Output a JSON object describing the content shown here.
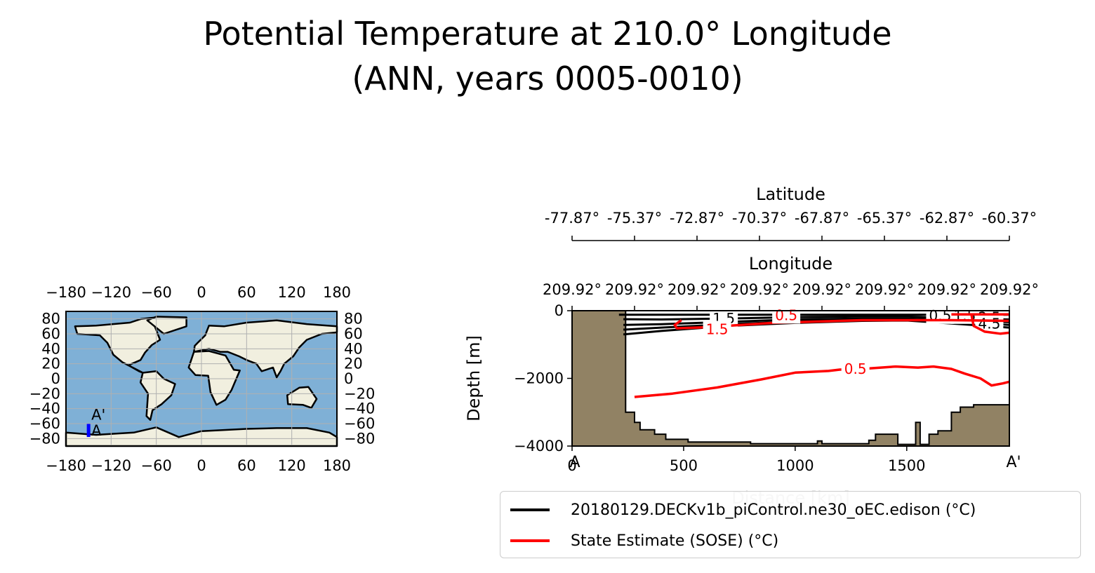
{
  "title": {
    "line1": "Potential Temperature at 210.0° Longitude",
    "line2": "(ANN, years 0005-0010)"
  },
  "colors": {
    "model": "#000000",
    "obs": "#ff0000",
    "land_section": "#918264",
    "map_ocean": "#7fb0d6",
    "map_land": "#f1efdf",
    "section_marker": "#0000ff"
  },
  "chart_data": [
    {
      "type": "map",
      "projection": "PlateCarree",
      "grid": true,
      "xlim": [
        -180,
        180
      ],
      "ylim": [
        -90,
        90
      ],
      "xticks": [
        "−180",
        "−120",
        "−60",
        "0",
        "60",
        "120",
        "180"
      ],
      "xtick_values": [
        -180,
        -120,
        -60,
        0,
        60,
        120,
        180
      ],
      "yticks": [
        "80",
        "60",
        "40",
        "20",
        "0",
        "−20",
        "−40",
        "−60",
        "−80"
      ],
      "ytick_values": [
        80,
        60,
        40,
        20,
        0,
        -20,
        -40,
        -60,
        -80
      ],
      "section": {
        "lon": -150.0,
        "lat_start": -77.87,
        "lat_end": -60.37,
        "start_label": "A",
        "end_label": "A'"
      }
    },
    {
      "type": "line",
      "subtype": "contour-section",
      "xlabel": "Distance [km]",
      "ylabel": "Depth [m]",
      "xlim": [
        0,
        1960
      ],
      "ylim": [
        -4000,
        0
      ],
      "xticks": [
        0,
        500,
        1000,
        1500
      ],
      "yticks": [
        0,
        -2000,
        -4000
      ],
      "ytick_labels": [
        "0",
        "−2000",
        "−4000"
      ],
      "start_label": "A",
      "end_label": "A'",
      "top_axis_longitude": {
        "label": "Longitude",
        "ticks": [
          "209.92°",
          "209.92°",
          "209.92°",
          "209.92°",
          "209.92°",
          "209.92°",
          "209.92°",
          "209.92°"
        ]
      },
      "top_axis_latitude": {
        "label": "Latitude",
        "ticks": [
          "-77.87°",
          "-75.37°",
          "-72.87°",
          "-70.37°",
          "-67.87°",
          "-65.37°",
          "-62.87°",
          "-60.37°"
        ]
      },
      "bathymetry": {
        "x": [
          0,
          240,
          240,
          280,
          280,
          305,
          305,
          370,
          370,
          420,
          420,
          520,
          520,
          800,
          800,
          1100,
          1100,
          1120,
          1120,
          1330,
          1330,
          1360,
          1360,
          1460,
          1460,
          1540,
          1540,
          1560,
          1560,
          1600,
          1600,
          1640,
          1640,
          1700,
          1700,
          1740,
          1740,
          1800,
          1800,
          1960,
          1960
        ],
        "depth": [
          0,
          0,
          -3000,
          -3000,
          -3300,
          -3300,
          -3520,
          -3520,
          -3650,
          -3650,
          -3800,
          -3800,
          -3880,
          -3880,
          -3930,
          -3930,
          -3850,
          -3850,
          -3930,
          -3930,
          -3830,
          -3830,
          -3650,
          -3650,
          -3950,
          -3950,
          -3300,
          -3300,
          -3950,
          -3950,
          -3650,
          -3650,
          -3550,
          -3550,
          -3000,
          -3000,
          -2850,
          -2850,
          -2780,
          -2780,
          -4000
        ]
      },
      "legend": [
        {
          "name": "20180129.DECKv1b_piControl.ne30_oEC.edison (°C)",
          "color": "#000000"
        },
        {
          "name": "State Estimate (SOSE) (°C)",
          "color": "#ff0000"
        }
      ],
      "legend_position": "lower-center",
      "series": [
        {
          "name": "20180129.DECKv1b_piControl.ne30_oEC.edison (°C)",
          "contours": [
            {
              "level": "",
              "x": [
                210,
                1960
              ],
              "depth": [
                -120,
                -120
              ]
            },
            {
              "level": "",
              "x": [
                230,
                400,
                700,
                1000,
                1300,
                1500,
                1700,
                1960
              ],
              "depth": [
                -250,
                -260,
                -230,
                -190,
                -170,
                -170,
                -220,
                -260
              ]
            },
            {
              "level": "",
              "x": [
                230,
                400,
                700,
                1000,
                1300,
                1500,
                1700,
                1960
              ],
              "depth": [
                -420,
                -400,
                -330,
                -260,
                -230,
                -230,
                -280,
                -340
              ]
            },
            {
              "level": "",
              "x": [
                230,
                400,
                700,
                1000,
                1300,
                1500,
                1700,
                1960
              ],
              "depth": [
                -560,
                -500,
                -400,
                -320,
                -270,
                -260,
                -330,
                -420
              ]
            },
            {
              "level": "",
              "x": [
                230,
                400,
                700,
                1000,
                1300,
                1500,
                1700,
                1960
              ],
              "depth": [
                -700,
                -600,
                -450,
                -360,
                -300,
                -290,
                -380,
                -500
              ]
            }
          ],
          "contour_labels": [
            {
              "text": "1.5",
              "x": 680,
              "depth": -230
            },
            {
              "text": "0.5",
              "x": 1650,
              "depth": -140
            },
            {
              "text": "1.5",
              "x": 1760,
              "depth": -140
            },
            {
              "text": "2.5",
              "x": 1870,
              "depth": -200
            },
            {
              "text": "4.5",
              "x": 1870,
              "depth": -380
            }
          ]
        },
        {
          "name": "State Estimate (SOSE) (°C)",
          "contours": [
            {
              "level": "0.5",
              "x": [
                280,
                450,
                650,
                850,
                1000,
                1150,
                1200,
                1300,
                1450,
                1550,
                1620,
                1700,
                1760,
                1830,
                1880,
                1930,
                1960
              ],
              "depth": [
                -2550,
                -2450,
                -2270,
                -2030,
                -1830,
                -1780,
                -1740,
                -1720,
                -1650,
                -1680,
                -1650,
                -1720,
                -1860,
                -2000,
                -2210,
                -2150,
                -2100
              ]
            },
            {
              "level": "1.5",
              "x": [
                490,
                460,
                470,
                600,
                900,
                1300,
                1700,
                1960
              ],
              "depth": [
                -280,
                -420,
                -520,
                -490,
                -360,
                -280,
                -280,
                -300
              ]
            },
            {
              "level": "0.5",
              "x": [
                1700,
                1960
              ],
              "depth": [
                -110,
                -110
              ]
            },
            {
              "level": "",
              "x": [
                1790,
                1800,
                1850,
                1920,
                1960
              ],
              "depth": [
                -120,
                -450,
                -620,
                -680,
                -650
              ]
            }
          ],
          "contour_labels": [
            {
              "text": "0.5",
              "x": 1270,
              "depth": -1720
            },
            {
              "text": "1.5",
              "x": 650,
              "depth": -550
            },
            {
              "text": "0.5",
              "x": 960,
              "depth": -130
            }
          ]
        }
      ]
    }
  ]
}
